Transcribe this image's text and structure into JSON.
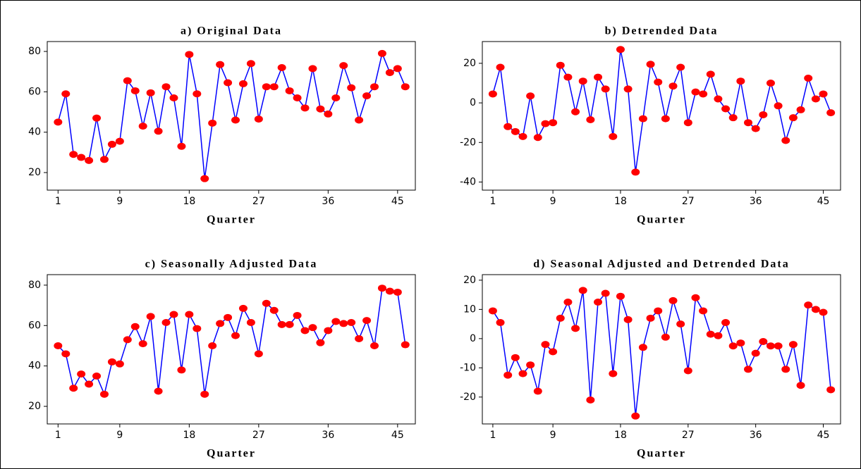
{
  "chart_data": [
    {
      "type": "line",
      "title": "a) Original Data",
      "xlabel": "Quarter",
      "color": "#0000ff",
      "marker_color": "#ff0000",
      "x": [
        1,
        2,
        3,
        4,
        5,
        6,
        7,
        8,
        9,
        10,
        11,
        12,
        13,
        14,
        15,
        16,
        17,
        18,
        19,
        20,
        21,
        22,
        23,
        24,
        25,
        26,
        27,
        28,
        29,
        30,
        31,
        32,
        33,
        34,
        35,
        36,
        37,
        38,
        39,
        40,
        41,
        42,
        43,
        44,
        45,
        46
      ],
      "values": [
        45,
        59,
        29,
        27.5,
        26,
        47,
        26.5,
        34,
        35.5,
        65.5,
        60.5,
        43,
        59.5,
        40.5,
        62.5,
        57,
        33,
        78.5,
        59,
        17,
        44.5,
        73.5,
        64.5,
        46,
        64,
        74,
        46.5,
        62.5,
        62.5,
        72,
        60.5,
        57,
        52,
        71.5,
        51.5,
        49,
        57,
        73,
        62,
        46,
        58,
        62.5,
        79,
        69.5,
        71.5,
        62.5
      ],
      "xlim": [
        -0.4,
        47.3
      ],
      "ylim": [
        11.3,
        84.9
      ],
      "xticks": [
        1,
        9,
        18,
        27,
        36,
        45
      ],
      "yticks": [
        20,
        40,
        60,
        80
      ]
    },
    {
      "type": "line",
      "title": "b) Detrended Data",
      "xlabel": "Quarter",
      "color": "#0000ff",
      "marker_color": "#ff0000",
      "x": [
        1,
        2,
        3,
        4,
        5,
        6,
        7,
        8,
        9,
        10,
        11,
        12,
        13,
        14,
        15,
        16,
        17,
        18,
        19,
        20,
        21,
        22,
        23,
        24,
        25,
        26,
        27,
        28,
        29,
        30,
        31,
        32,
        33,
        34,
        35,
        36,
        37,
        38,
        39,
        40,
        41,
        42,
        43,
        44,
        45,
        46
      ],
      "values": [
        4.5,
        18,
        -12,
        -14.5,
        -17,
        3.5,
        -17.5,
        -10.5,
        -10,
        19,
        13,
        -4.5,
        11,
        -8.5,
        13,
        7,
        -17,
        27,
        7,
        -35,
        -8,
        19.5,
        10.5,
        -8,
        8.5,
        18,
        -10,
        5.5,
        4.5,
        14.5,
        2,
        -3,
        -7.5,
        11,
        -10,
        -13,
        -6,
        10,
        -1.5,
        -19,
        -7.5,
        -3.5,
        12.5,
        2,
        4.5,
        -5
      ],
      "xlim": [
        -0.4,
        47.3
      ],
      "ylim": [
        -44.1,
        31
      ],
      "xticks": [
        1,
        9,
        18,
        27,
        36,
        45
      ],
      "yticks": [
        -40,
        -20,
        0,
        20
      ]
    },
    {
      "type": "line",
      "title": "c) Seasonally Adjusted Data",
      "xlabel": "Quarter",
      "color": "#0000ff",
      "marker_color": "#ff0000",
      "x": [
        1,
        2,
        3,
        4,
        5,
        6,
        7,
        8,
        9,
        10,
        11,
        12,
        13,
        14,
        15,
        16,
        17,
        18,
        19,
        20,
        21,
        22,
        23,
        24,
        25,
        26,
        27,
        28,
        29,
        30,
        31,
        32,
        33,
        34,
        35,
        36,
        37,
        38,
        39,
        40,
        41,
        42,
        43,
        44,
        45,
        46
      ],
      "values": [
        50,
        46,
        29,
        36,
        31,
        35,
        26,
        42,
        41,
        53,
        59.5,
        51,
        64.5,
        27.5,
        61.5,
        65.5,
        38,
        65.5,
        58.5,
        26,
        50,
        61,
        64,
        55,
        68.5,
        61.5,
        46,
        71,
        67.5,
        60.5,
        60.5,
        65,
        57.5,
        59,
        51.5,
        57.5,
        62,
        61,
        61.5,
        53.5,
        62.5,
        50,
        78.5,
        77,
        76.5,
        50.5
      ],
      "xlim": [
        -0.4,
        47.3
      ],
      "ylim": [
        11.3,
        85.2
      ],
      "xticks": [
        1,
        9,
        18,
        27,
        36,
        45
      ],
      "yticks": [
        20,
        40,
        60,
        80
      ]
    },
    {
      "type": "line",
      "title": "d) Seasonal Adjusted and Detrended Data",
      "xlabel": "Quarter",
      "color": "#0000ff",
      "marker_color": "#ff0000",
      "x": [
        1,
        2,
        3,
        4,
        5,
        6,
        7,
        8,
        9,
        10,
        11,
        12,
        13,
        14,
        15,
        16,
        17,
        18,
        19,
        20,
        21,
        22,
        23,
        24,
        25,
        26,
        27,
        28,
        29,
        30,
        31,
        32,
        33,
        34,
        35,
        36,
        37,
        38,
        39,
        40,
        41,
        42,
        43,
        44,
        45,
        46
      ],
      "values": [
        9.5,
        5.5,
        -12.5,
        -6.5,
        -12,
        -9,
        -18,
        -2,
        -4.5,
        7,
        12.5,
        3.5,
        16.5,
        -21,
        12.5,
        15.5,
        -12,
        14.5,
        6.5,
        -26.5,
        -3,
        7,
        9.5,
        0.5,
        13,
        5,
        -11,
        14,
        9.5,
        1.5,
        1,
        5.5,
        -2.5,
        -1.5,
        -10.5,
        -5,
        -1,
        -2.5,
        -2.5,
        -10.5,
        -2,
        -16,
        11.5,
        10,
        9,
        -17.5
      ],
      "xlim": [
        -0.4,
        47.3
      ],
      "ylim": [
        -29.2,
        21.9
      ],
      "xticks": [
        1,
        9,
        18,
        27,
        36,
        45
      ],
      "yticks": [
        -20,
        -10,
        0,
        10,
        20
      ]
    }
  ]
}
